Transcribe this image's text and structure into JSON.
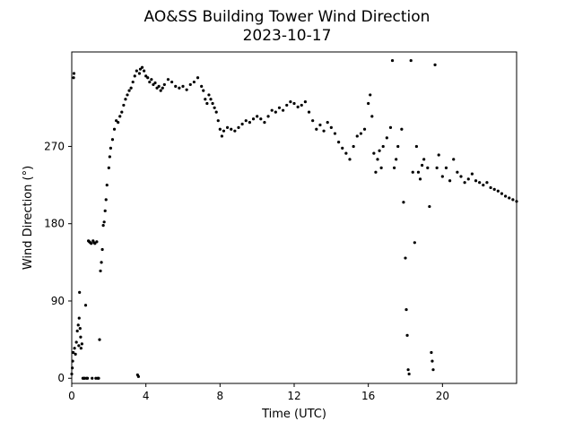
{
  "chart_data": {
    "type": "scatter",
    "title": "AO&SS Building Tower Wind Direction",
    "subtitle": "2023-10-17",
    "xlabel": "Time (UTC)",
    "ylabel": "Wind Direction (°)",
    "xlim": [
      0,
      24
    ],
    "ylim": [
      -6,
      380
    ],
    "x_ticks": [
      0,
      4,
      8,
      12,
      16,
      20
    ],
    "y_ticks": [
      0,
      90,
      180,
      270
    ],
    "grid": false,
    "marker_color": "#000000",
    "series": [
      {
        "points": [
          [
            0.0,
            5
          ],
          [
            0.03,
            12
          ],
          [
            0.05,
            20
          ],
          [
            0.08,
            30
          ],
          [
            0.1,
            350
          ],
          [
            0.12,
            355
          ],
          [
            0.15,
            35
          ],
          [
            0.2,
            28
          ],
          [
            0.25,
            42
          ],
          [
            0.3,
            55
          ],
          [
            0.35,
            62
          ],
          [
            0.38,
            38
          ],
          [
            0.4,
            70
          ],
          [
            0.42,
            100
          ],
          [
            0.45,
            58
          ],
          [
            0.48,
            48
          ],
          [
            0.5,
            35
          ],
          [
            0.55,
            40
          ],
          [
            0.6,
            0
          ],
          [
            0.65,
            0
          ],
          [
            0.7,
            0
          ],
          [
            0.75,
            85
          ],
          [
            0.8,
            0
          ],
          [
            0.85,
            0
          ],
          [
            0.9,
            160
          ],
          [
            0.95,
            159
          ],
          [
            1.0,
            158
          ],
          [
            1.05,
            157
          ],
          [
            1.1,
            0
          ],
          [
            1.15,
            160
          ],
          [
            1.2,
            158
          ],
          [
            1.25,
            157
          ],
          [
            1.3,
            0
          ],
          [
            1.35,
            159
          ],
          [
            1.4,
            0
          ],
          [
            1.45,
            0
          ],
          [
            1.5,
            45
          ],
          [
            1.55,
            125
          ],
          [
            1.6,
            135
          ],
          [
            1.65,
            150
          ],
          [
            1.7,
            178
          ],
          [
            1.75,
            182
          ],
          [
            1.8,
            195
          ],
          [
            1.85,
            208
          ],
          [
            1.9,
            225
          ],
          [
            2.0,
            245
          ],
          [
            2.05,
            258
          ],
          [
            2.1,
            268
          ],
          [
            2.2,
            278
          ],
          [
            2.3,
            290
          ],
          [
            2.4,
            300
          ],
          [
            2.5,
            298
          ],
          [
            2.6,
            305
          ],
          [
            2.7,
            310
          ],
          [
            2.8,
            318
          ],
          [
            2.9,
            325
          ],
          [
            3.0,
            330
          ],
          [
            3.1,
            335
          ],
          [
            3.2,
            338
          ],
          [
            3.3,
            345
          ],
          [
            3.4,
            352
          ],
          [
            3.5,
            358
          ],
          [
            3.55,
            4
          ],
          [
            3.6,
            2
          ],
          [
            3.65,
            355
          ],
          [
            3.7,
            360
          ],
          [
            3.8,
            362
          ],
          [
            3.9,
            358
          ],
          [
            4.0,
            352
          ],
          [
            4.1,
            350
          ],
          [
            4.2,
            345
          ],
          [
            4.3,
            348
          ],
          [
            4.4,
            342
          ],
          [
            4.5,
            344
          ],
          [
            4.6,
            338
          ],
          [
            4.7,
            340
          ],
          [
            4.8,
            335
          ],
          [
            4.9,
            338
          ],
          [
            5.0,
            342
          ],
          [
            5.2,
            348
          ],
          [
            5.4,
            345
          ],
          [
            5.6,
            340
          ],
          [
            5.8,
            338
          ],
          [
            6.0,
            340
          ],
          [
            6.2,
            336
          ],
          [
            6.4,
            342
          ],
          [
            6.6,
            345
          ],
          [
            6.8,
            350
          ],
          [
            7.0,
            340
          ],
          [
            7.1,
            335
          ],
          [
            7.2,
            325
          ],
          [
            7.3,
            320
          ],
          [
            7.4,
            330
          ],
          [
            7.5,
            325
          ],
          [
            7.6,
            320
          ],
          [
            7.7,
            315
          ],
          [
            7.8,
            310
          ],
          [
            7.9,
            300
          ],
          [
            8.0,
            290
          ],
          [
            8.1,
            282
          ],
          [
            8.2,
            288
          ],
          [
            8.4,
            292
          ],
          [
            8.6,
            290
          ],
          [
            8.8,
            288
          ],
          [
            9.0,
            292
          ],
          [
            9.2,
            296
          ],
          [
            9.4,
            300
          ],
          [
            9.6,
            298
          ],
          [
            9.8,
            302
          ],
          [
            10.0,
            305
          ],
          [
            10.2,
            302
          ],
          [
            10.4,
            298
          ],
          [
            10.6,
            305
          ],
          [
            10.8,
            312
          ],
          [
            11.0,
            310
          ],
          [
            11.2,
            315
          ],
          [
            11.4,
            312
          ],
          [
            11.6,
            318
          ],
          [
            11.8,
            322
          ],
          [
            12.0,
            320
          ],
          [
            12.2,
            316
          ],
          [
            12.4,
            318
          ],
          [
            12.6,
            322
          ],
          [
            12.8,
            310
          ],
          [
            13.0,
            300
          ],
          [
            13.2,
            290
          ],
          [
            13.4,
            295
          ],
          [
            13.6,
            288
          ],
          [
            13.8,
            298
          ],
          [
            14.0,
            292
          ],
          [
            14.2,
            285
          ],
          [
            14.4,
            275
          ],
          [
            14.6,
            268
          ],
          [
            14.8,
            262
          ],
          [
            15.0,
            255
          ],
          [
            15.2,
            270
          ],
          [
            15.4,
            282
          ],
          [
            15.6,
            285
          ],
          [
            15.8,
            290
          ],
          [
            16.0,
            320
          ],
          [
            16.1,
            330
          ],
          [
            16.2,
            305
          ],
          [
            16.3,
            262
          ],
          [
            16.4,
            240
          ],
          [
            16.5,
            255
          ],
          [
            16.6,
            265
          ],
          [
            16.7,
            245
          ],
          [
            16.8,
            270
          ],
          [
            17.0,
            280
          ],
          [
            17.2,
            292
          ],
          [
            17.3,
            370
          ],
          [
            17.4,
            245
          ],
          [
            17.5,
            255
          ],
          [
            17.6,
            270
          ],
          [
            17.8,
            290
          ],
          [
            17.9,
            205
          ],
          [
            18.0,
            140
          ],
          [
            18.05,
            80
          ],
          [
            18.1,
            50
          ],
          [
            18.15,
            10
          ],
          [
            18.2,
            5
          ],
          [
            18.3,
            370
          ],
          [
            18.4,
            240
          ],
          [
            18.5,
            158
          ],
          [
            18.6,
            270
          ],
          [
            18.7,
            240
          ],
          [
            18.8,
            232
          ],
          [
            18.9,
            248
          ],
          [
            19.0,
            255
          ],
          [
            19.2,
            245
          ],
          [
            19.3,
            200
          ],
          [
            19.4,
            30
          ],
          [
            19.45,
            20
          ],
          [
            19.5,
            10
          ],
          [
            19.6,
            365
          ],
          [
            19.7,
            245
          ],
          [
            19.8,
            260
          ],
          [
            20.0,
            235
          ],
          [
            20.2,
            245
          ],
          [
            20.4,
            230
          ],
          [
            20.6,
            255
          ],
          [
            20.8,
            240
          ],
          [
            21.0,
            235
          ],
          [
            21.2,
            228
          ],
          [
            21.4,
            232
          ],
          [
            21.6,
            238
          ],
          [
            21.8,
            230
          ],
          [
            22.0,
            228
          ],
          [
            22.2,
            225
          ],
          [
            22.4,
            228
          ],
          [
            22.6,
            222
          ],
          [
            22.8,
            220
          ],
          [
            23.0,
            218
          ],
          [
            23.2,
            215
          ],
          [
            23.4,
            212
          ],
          [
            23.6,
            210
          ],
          [
            23.8,
            208
          ],
          [
            24.0,
            206
          ]
        ]
      }
    ]
  }
}
